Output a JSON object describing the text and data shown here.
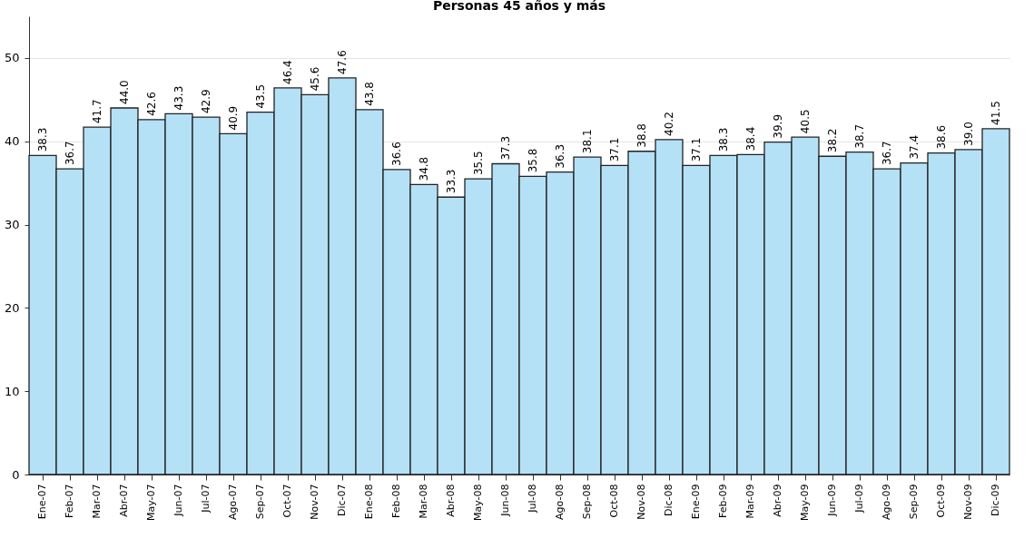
{
  "chart_data": {
    "type": "bar",
    "title": "Personas 45 años y más",
    "categories": [
      "Ene-07",
      "Feb-07",
      "Mar-07",
      "Abr-07",
      "May-07",
      "Jun-07",
      "Jul-07",
      "Ago-07",
      "Sep-07",
      "Oct-07",
      "Nov-07",
      "Dic-07",
      "Ene-08",
      "Feb-08",
      "Mar-08",
      "Abr-08",
      "May-08",
      "Jun-08",
      "Jul-08",
      "Ago-08",
      "Sep-08",
      "Oct-08",
      "Nov-08",
      "Dic-08",
      "Ene-09",
      "Feb-09",
      "Mar-09",
      "Abr-09",
      "May-09",
      "Jun-09",
      "Jul-09",
      "Ago-09",
      "Sep-09",
      "Oct-09",
      "Nov-09",
      "Dic-09"
    ],
    "values": [
      38.3,
      36.7,
      41.7,
      44.0,
      42.6,
      43.3,
      42.9,
      40.9,
      43.5,
      46.4,
      45.6,
      47.6,
      43.8,
      36.6,
      34.8,
      33.3,
      35.5,
      37.3,
      35.8,
      36.3,
      38.1,
      37.1,
      38.8,
      40.2,
      37.1,
      38.3,
      38.4,
      39.9,
      40.5,
      38.2,
      38.7,
      36.7,
      37.4,
      38.6,
      39.0,
      41.5
    ],
    "value_labels": [
      "38.3",
      "36.7",
      "41.7",
      "44.0",
      "42.6",
      "43.3",
      "42.9",
      "40.9",
      "43.5",
      "46.4",
      "45.6",
      "47.6",
      "43.8",
      "36.6",
      "34.8",
      "33.3",
      "35.5",
      "37.3",
      "35.8",
      "36.3",
      "38.1",
      "37.1",
      "38.8",
      "40.2",
      "37.1",
      "38.3",
      "38.4",
      "39.9",
      "40.5",
      "38.2",
      "38.7",
      "36.7",
      "37.4",
      "38.6",
      "39.0",
      "41.5"
    ],
    "color": "#b5e1f7",
    "ylim": [
      0,
      55
    ],
    "yticks": [
      0,
      10,
      20,
      30,
      40,
      50
    ],
    "grid": "y"
  }
}
